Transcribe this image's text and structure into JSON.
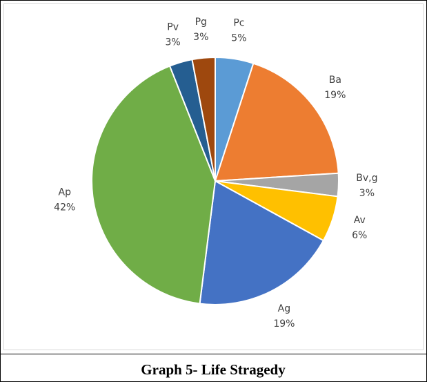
{
  "chart_data": {
    "type": "pie",
    "title": "Graph 5- Life Stragedy",
    "categories": [
      "Pc",
      "Ba",
      "Bv,g",
      "Av",
      "Ag",
      "Ap",
      "Pv",
      "Pg"
    ],
    "values": [
      5,
      19,
      3,
      6,
      19,
      42,
      3,
      3
    ],
    "value_labels": [
      "5%",
      "19%",
      "3%",
      "6%",
      "19%",
      "42%",
      "3%",
      "3%"
    ],
    "colors": [
      "#5b9bd5",
      "#ed7d31",
      "#a5a5a5",
      "#ffc000",
      "#4472c4",
      "#70ad47",
      "#255e91",
      "#9e480e"
    ]
  }
}
